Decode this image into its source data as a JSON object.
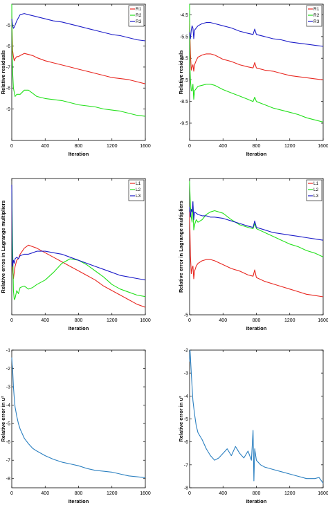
{
  "colors": {
    "red": "#e8261f",
    "green": "#22e01a",
    "blue": "#1c1cc8",
    "teal": "#2a7fc0",
    "axis": "#000000"
  },
  "chart_data": [
    {
      "type": "line",
      "xlabel": "Iteration",
      "ylabel": "Relative residuals",
      "xlim": [
        0,
        1600
      ],
      "ylim": [
        -10.5,
        -4
      ],
      "xticks": [
        "0",
        "400",
        "800",
        "1200",
        "1600"
      ],
      "yticks": [
        "-5",
        "-6",
        "-7",
        "-8",
        "-9"
      ],
      "legend": "top-right",
      "series": [
        {
          "name": "R1",
          "color": "red",
          "x": [
            0,
            10,
            20,
            30,
            40,
            60,
            80,
            100,
            150,
            200,
            250,
            300,
            400,
            500,
            600,
            700,
            800,
            900,
            1000,
            1100,
            1200,
            1300,
            1400,
            1500,
            1600
          ],
          "y": [
            -4.6,
            -6.2,
            -6.5,
            -6.7,
            -6.6,
            -6.5,
            -6.5,
            -6.45,
            -6.35,
            -6.4,
            -6.45,
            -6.55,
            -6.7,
            -6.8,
            -6.9,
            -7.0,
            -7.1,
            -7.2,
            -7.3,
            -7.4,
            -7.5,
            -7.55,
            -7.6,
            -7.7,
            -7.8
          ]
        },
        {
          "name": "R2",
          "color": "green",
          "x": [
            0,
            5,
            10,
            20,
            30,
            40,
            60,
            80,
            100,
            150,
            200,
            250,
            300,
            400,
            500,
            600,
            700,
            800,
            900,
            1000,
            1100,
            1200,
            1300,
            1400,
            1500,
            1600
          ],
          "y": [
            -4.0,
            -6.4,
            -7.2,
            -8.0,
            -8.2,
            -8.4,
            -8.3,
            -8.3,
            -8.3,
            -8.1,
            -8.1,
            -8.25,
            -8.4,
            -8.5,
            -8.55,
            -8.6,
            -8.7,
            -8.8,
            -8.85,
            -8.9,
            -9.0,
            -9.05,
            -9.1,
            -9.2,
            -9.3,
            -9.35
          ]
        },
        {
          "name": "R3",
          "color": "blue",
          "x": [
            0,
            10,
            20,
            30,
            40,
            60,
            80,
            100,
            150,
            200,
            250,
            300,
            400,
            500,
            600,
            700,
            800,
            900,
            1000,
            1100,
            1200,
            1300,
            1400,
            1500,
            1600
          ],
          "y": [
            -4.7,
            -5.0,
            -5.15,
            -5.1,
            -5.0,
            -4.8,
            -4.65,
            -4.5,
            -4.45,
            -4.5,
            -4.55,
            -4.6,
            -4.7,
            -4.8,
            -4.85,
            -4.95,
            -5.05,
            -5.15,
            -5.25,
            -5.35,
            -5.45,
            -5.5,
            -5.6,
            -5.7,
            -5.75
          ]
        }
      ]
    },
    {
      "type": "line",
      "xlabel": "Iteration",
      "ylabel": "Relative residuals",
      "xlim": [
        0,
        1600
      ],
      "ylim": [
        -10.3,
        -4
      ],
      "xticks": [
        "0",
        "400",
        "800",
        "1200",
        "1600"
      ],
      "yticks": [
        "-4.5",
        "-5.5",
        "-6.5",
        "-7.5",
        "-8.5",
        "-9.5"
      ],
      "legend": "top-right",
      "series": [
        {
          "name": "R1",
          "color": "red",
          "x": [
            0,
            10,
            20,
            30,
            40,
            50,
            60,
            80,
            100,
            150,
            200,
            250,
            300,
            400,
            500,
            600,
            700,
            760,
            780,
            800,
            900,
            1000,
            1100,
            1200,
            1300,
            1400,
            1500,
            1600
          ],
          "y": [
            -4.8,
            -6.3,
            -7.05,
            -6.9,
            -6.8,
            -7.1,
            -6.8,
            -6.6,
            -6.45,
            -6.35,
            -6.3,
            -6.3,
            -6.35,
            -6.55,
            -6.65,
            -6.8,
            -6.9,
            -6.95,
            -6.7,
            -6.95,
            -7.05,
            -7.1,
            -7.2,
            -7.3,
            -7.35,
            -7.4,
            -7.45,
            -7.5
          ]
        },
        {
          "name": "R2",
          "color": "green",
          "x": [
            0,
            5,
            10,
            20,
            30,
            40,
            50,
            60,
            80,
            100,
            150,
            200,
            250,
            300,
            400,
            500,
            600,
            700,
            760,
            780,
            800,
            900,
            1000,
            1100,
            1200,
            1300,
            1400,
            1500,
            1600
          ],
          "y": [
            -4.0,
            -7.0,
            -7.5,
            -8.0,
            -8.0,
            -7.7,
            -8.4,
            -8.0,
            -7.9,
            -7.8,
            -7.75,
            -7.7,
            -7.7,
            -7.75,
            -7.95,
            -8.1,
            -8.25,
            -8.4,
            -8.5,
            -8.3,
            -8.5,
            -8.65,
            -8.8,
            -8.9,
            -9.0,
            -9.1,
            -9.25,
            -9.35,
            -9.45
          ]
        },
        {
          "name": "R3",
          "color": "blue",
          "x": [
            0,
            10,
            20,
            30,
            40,
            50,
            60,
            80,
            100,
            150,
            200,
            250,
            300,
            400,
            500,
            600,
            700,
            760,
            780,
            800,
            900,
            1000,
            1100,
            1200,
            1300,
            1400,
            1500,
            1600
          ],
          "y": [
            -5.3,
            -5.6,
            -5.2,
            -5.0,
            -5.1,
            -5.6,
            -5.2,
            -5.1,
            -5.0,
            -4.9,
            -4.85,
            -4.85,
            -4.9,
            -5.0,
            -5.1,
            -5.25,
            -5.35,
            -5.4,
            -5.15,
            -5.4,
            -5.5,
            -5.6,
            -5.65,
            -5.75,
            -5.8,
            -5.85,
            -5.9,
            -5.95
          ]
        }
      ]
    },
    {
      "type": "line",
      "xlabel": "Iteration",
      "ylabel": "Relative erros in Lagrange multipliers",
      "xlim": [
        0,
        1600
      ],
      "ylim": [
        -4.3,
        0.2
      ],
      "xticks": [
        "0",
        "400",
        "800",
        "1200",
        "1600"
      ],
      "yticks": [],
      "legend": "top-right",
      "series": [
        {
          "name": "L1",
          "color": "red",
          "x": [
            0,
            5,
            10,
            20,
            30,
            40,
            60,
            80,
            100,
            150,
            200,
            250,
            300,
            400,
            500,
            600,
            700,
            800,
            900,
            1000,
            1100,
            1200,
            1300,
            1400,
            1500,
            1600
          ],
          "y": [
            0.0,
            -2.2,
            -2.8,
            -3.1,
            -2.9,
            -2.7,
            -2.5,
            -2.45,
            -2.3,
            -2.1,
            -2.0,
            -2.05,
            -2.1,
            -2.25,
            -2.4,
            -2.55,
            -2.7,
            -2.85,
            -3.0,
            -3.15,
            -3.35,
            -3.5,
            -3.65,
            -3.8,
            -3.95,
            -4.05
          ]
        },
        {
          "name": "L2",
          "color": "green",
          "x": [
            0,
            5,
            10,
            20,
            30,
            40,
            60,
            80,
            100,
            150,
            200,
            250,
            300,
            400,
            500,
            600,
            700,
            800,
            900,
            1000,
            1100,
            1200,
            1300,
            1400,
            1500,
            1600
          ],
          "y": [
            0.0,
            -1.0,
            -2.0,
            -3.5,
            -3.8,
            -3.75,
            -3.5,
            -3.6,
            -3.4,
            -3.35,
            -3.45,
            -3.4,
            -3.3,
            -3.15,
            -2.9,
            -2.6,
            -2.45,
            -2.5,
            -2.65,
            -2.85,
            -3.05,
            -3.3,
            -3.45,
            -3.55,
            -3.65,
            -3.7
          ]
        },
        {
          "name": "L3",
          "color": "blue",
          "x": [
            0,
            5,
            10,
            20,
            30,
            40,
            60,
            80,
            100,
            150,
            200,
            250,
            300,
            400,
            500,
            600,
            700,
            800,
            900,
            1000,
            1100,
            1200,
            1300,
            1400,
            1500,
            1600
          ],
          "y": [
            0.0,
            -2.3,
            -2.7,
            -2.5,
            -2.6,
            -2.45,
            -2.4,
            -2.45,
            -2.35,
            -2.3,
            -2.3,
            -2.25,
            -2.2,
            -2.2,
            -2.25,
            -2.3,
            -2.4,
            -2.5,
            -2.6,
            -2.7,
            -2.8,
            -2.9,
            -3.0,
            -3.05,
            -3.1,
            -3.15
          ]
        }
      ]
    },
    {
      "type": "line",
      "xlabel": "Iteration",
      "ylabel": "Relative error in Lagrange multipliers",
      "xlim": [
        0,
        1600
      ],
      "ylim": [
        -5,
        0.3
      ],
      "xticks": [
        "0",
        "400",
        "800",
        "1200",
        "1600"
      ],
      "yticks": [
        "-5"
      ],
      "legend": "top-right",
      "series": [
        {
          "name": "L1",
          "color": "red",
          "x": [
            0,
            10,
            20,
            30,
            40,
            50,
            60,
            80,
            100,
            150,
            200,
            250,
            300,
            400,
            500,
            600,
            700,
            760,
            780,
            800,
            900,
            1000,
            1100,
            1200,
            1300,
            1400,
            1500,
            1600
          ],
          "y": [
            -1.0,
            -2.7,
            -3.4,
            -3.2,
            -3.1,
            -3.6,
            -3.3,
            -3.1,
            -3.0,
            -2.9,
            -2.85,
            -2.85,
            -2.9,
            -3.05,
            -3.2,
            -3.3,
            -3.45,
            -3.5,
            -3.25,
            -3.55,
            -3.7,
            -3.8,
            -3.9,
            -4.0,
            -4.1,
            -4.2,
            -4.25,
            -4.3
          ]
        },
        {
          "name": "L2",
          "color": "green",
          "x": [
            0,
            5,
            10,
            20,
            30,
            40,
            50,
            60,
            80,
            100,
            150,
            200,
            250,
            300,
            400,
            500,
            600,
            700,
            760,
            780,
            800,
            900,
            1000,
            1100,
            1200,
            1300,
            1400,
            1500,
            1600
          ],
          "y": [
            0.2,
            -0.3,
            -0.8,
            -1.2,
            -1.4,
            -0.6,
            -1.7,
            -1.5,
            -1.3,
            -1.4,
            -1.3,
            -1.1,
            -1.0,
            -0.95,
            -1.05,
            -1.3,
            -1.5,
            -1.6,
            -1.65,
            -1.45,
            -1.65,
            -1.8,
            -1.95,
            -2.1,
            -2.25,
            -2.35,
            -2.5,
            -2.6,
            -2.75
          ]
        },
        {
          "name": "L3",
          "color": "blue",
          "x": [
            0,
            10,
            20,
            30,
            40,
            50,
            60,
            80,
            100,
            150,
            200,
            250,
            300,
            400,
            500,
            600,
            700,
            760,
            780,
            800,
            900,
            1000,
            1100,
            1200,
            1300,
            1400,
            1500,
            1600
          ],
          "y": [
            -0.8,
            -1.2,
            -0.9,
            -1.0,
            -0.6,
            -1.3,
            -1.0,
            -1.05,
            -1.1,
            -1.15,
            -1.15,
            -1.2,
            -1.2,
            -1.25,
            -1.35,
            -1.45,
            -1.55,
            -1.6,
            -1.35,
            -1.6,
            -1.7,
            -1.8,
            -1.85,
            -1.9,
            -1.95,
            -2.0,
            -2.05,
            -2.1
          ]
        }
      ]
    },
    {
      "type": "line",
      "xlabel": "Iteration",
      "ylabel": "Relative error in u²",
      "xlim": [
        0,
        1600
      ],
      "ylim": [
        -8.5,
        -1
      ],
      "xticks": [
        "0",
        "400",
        "800",
        "1200",
        "1600"
      ],
      "yticks": [
        "-1",
        "-2",
        "-3",
        "-4",
        "-5",
        "-6",
        "-7",
        "-8"
      ],
      "series": [
        {
          "color": "teal",
          "x": [
            0,
            5,
            10,
            20,
            30,
            40,
            60,
            80,
            100,
            150,
            200,
            250,
            300,
            400,
            500,
            600,
            700,
            800,
            900,
            1000,
            1100,
            1200,
            1300,
            1400,
            1500,
            1600
          ],
          "y": [
            -1.4,
            -1.8,
            -2.0,
            -3.0,
            -3.6,
            -4.1,
            -4.6,
            -5.0,
            -5.3,
            -5.8,
            -6.1,
            -6.35,
            -6.5,
            -6.75,
            -6.95,
            -7.1,
            -7.2,
            -7.3,
            -7.45,
            -7.55,
            -7.6,
            -7.65,
            -7.75,
            -7.85,
            -7.9,
            -7.95
          ]
        }
      ]
    },
    {
      "type": "line",
      "xlabel": "Iteration",
      "ylabel": "Relative error in u²",
      "xlim": [
        0,
        1600
      ],
      "ylim": [
        -8,
        -2
      ],
      "xticks": [
        "0",
        "400",
        "800",
        "1200",
        "1600"
      ],
      "yticks": [
        "-2",
        "-3",
        "-4",
        "-5",
        "-6",
        "-7",
        "-8"
      ],
      "series": [
        {
          "color": "teal",
          "x": [
            0,
            5,
            10,
            20,
            30,
            40,
            60,
            80,
            100,
            150,
            200,
            250,
            300,
            350,
            400,
            450,
            500,
            550,
            600,
            650,
            700,
            740,
            760,
            770,
            780,
            800,
            850,
            900,
            1000,
            1100,
            1200,
            1300,
            1400,
            1500,
            1550,
            1600
          ],
          "y": [
            -2.5,
            -2.0,
            -2.3,
            -3.0,
            -3.6,
            -4.2,
            -4.8,
            -5.3,
            -5.6,
            -5.9,
            -6.3,
            -6.6,
            -6.8,
            -6.7,
            -6.5,
            -6.3,
            -6.6,
            -6.2,
            -6.5,
            -6.7,
            -6.4,
            -6.8,
            -5.5,
            -7.7,
            -6.3,
            -6.8,
            -7.0,
            -7.1,
            -7.2,
            -7.3,
            -7.4,
            -7.5,
            -7.6,
            -7.6,
            -7.55,
            -7.8
          ]
        }
      ]
    }
  ]
}
